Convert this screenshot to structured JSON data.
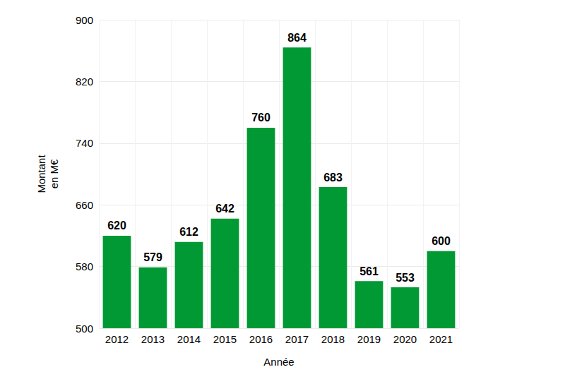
{
  "chart_data": {
    "type": "bar",
    "x_label": "Année",
    "y_label": "Montant\nen M€",
    "categories": [
      "2012",
      "2013",
      "2014",
      "2015",
      "2016",
      "2017",
      "2018",
      "2019",
      "2020",
      "2021"
    ],
    "values": [
      620,
      579,
      612,
      642,
      760,
      864,
      683,
      561,
      553,
      600
    ],
    "color": "#009933",
    "ylim": [
      500,
      900
    ],
    "yticks": [
      500,
      580,
      660,
      740,
      820,
      900
    ],
    "grid": true,
    "data_labels": true
  }
}
